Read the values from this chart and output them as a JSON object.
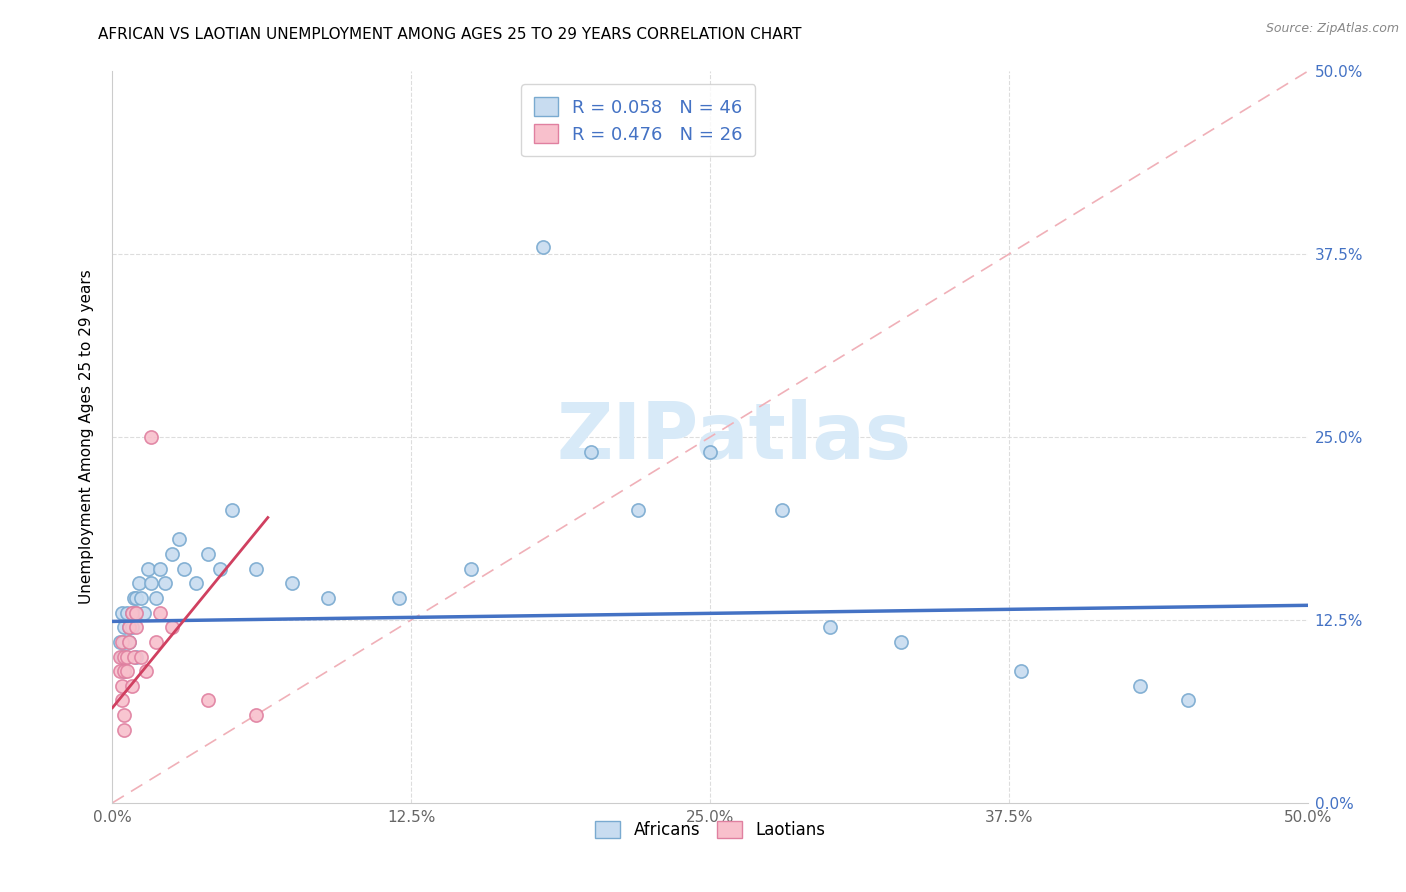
{
  "title": "AFRICAN VS LAOTIAN UNEMPLOYMENT AMONG AGES 25 TO 29 YEARS CORRELATION CHART",
  "source": "Source: ZipAtlas.com",
  "ylabel": "Unemployment Among Ages 25 to 29 years",
  "xlim": [
    0,
    0.5
  ],
  "ylim": [
    0,
    0.5
  ],
  "african_R": 0.058,
  "african_N": 46,
  "laotian_R": 0.476,
  "laotian_N": 26,
  "african_face_color": "#c8dcf0",
  "african_edge_color": "#7aaad0",
  "laotian_face_color": "#f8c0cc",
  "laotian_edge_color": "#e080a0",
  "african_line_color": "#4472c4",
  "laotian_line_color": "#d04060",
  "diag_color": "#f0b0b8",
  "watermark_color": "#d8eaf8",
  "tick_label_color": "#4472c4",
  "african_x": [
    0.003,
    0.004,
    0.004,
    0.005,
    0.005,
    0.005,
    0.006,
    0.006,
    0.007,
    0.007,
    0.008,
    0.008,
    0.009,
    0.01,
    0.01,
    0.01,
    0.011,
    0.012,
    0.013,
    0.015,
    0.016,
    0.018,
    0.02,
    0.022,
    0.025,
    0.028,
    0.03,
    0.035,
    0.04,
    0.045,
    0.05,
    0.06,
    0.075,
    0.09,
    0.12,
    0.15,
    0.18,
    0.2,
    0.22,
    0.25,
    0.28,
    0.3,
    0.33,
    0.38,
    0.43,
    0.45
  ],
  "african_y": [
    0.11,
    0.1,
    0.13,
    0.09,
    0.12,
    0.11,
    0.1,
    0.13,
    0.12,
    0.11,
    0.13,
    0.12,
    0.14,
    0.13,
    0.1,
    0.14,
    0.15,
    0.14,
    0.13,
    0.16,
    0.15,
    0.14,
    0.16,
    0.15,
    0.17,
    0.18,
    0.16,
    0.15,
    0.17,
    0.16,
    0.2,
    0.16,
    0.15,
    0.14,
    0.14,
    0.16,
    0.38,
    0.24,
    0.2,
    0.24,
    0.2,
    0.12,
    0.11,
    0.09,
    0.08,
    0.07
  ],
  "laotian_x": [
    0.003,
    0.003,
    0.004,
    0.004,
    0.004,
    0.005,
    0.005,
    0.005,
    0.005,
    0.006,
    0.006,
    0.007,
    0.007,
    0.008,
    0.008,
    0.009,
    0.01,
    0.01,
    0.012,
    0.014,
    0.016,
    0.018,
    0.02,
    0.025,
    0.04,
    0.06
  ],
  "laotian_y": [
    0.09,
    0.1,
    0.08,
    0.11,
    0.07,
    0.09,
    0.06,
    0.1,
    0.05,
    0.1,
    0.09,
    0.12,
    0.11,
    0.13,
    0.08,
    0.1,
    0.13,
    0.12,
    0.1,
    0.09,
    0.25,
    0.11,
    0.13,
    0.12,
    0.07,
    0.06
  ],
  "af_line_x0": 0.0,
  "af_line_y0": 0.124,
  "af_line_x1": 0.5,
  "af_line_y1": 0.135,
  "la_line_x0": 0.0,
  "la_line_y0": 0.065,
  "la_line_x1": 0.065,
  "la_line_y1": 0.195
}
